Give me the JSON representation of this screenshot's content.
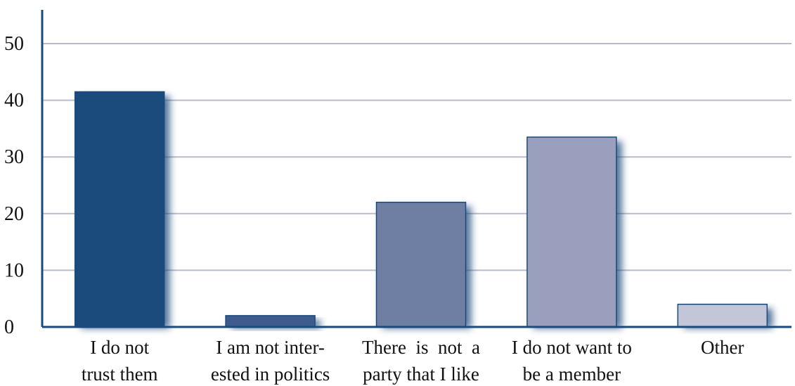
{
  "chart_data": {
    "type": "bar",
    "categories": [
      [
        "I do not",
        "trust them"
      ],
      [
        "I am not inter-",
        "ested in politics"
      ],
      [
        "There  is  not  a",
        "party that I like"
      ],
      [
        "I do not want to",
        "be a member"
      ],
      [
        "Other"
      ]
    ],
    "values": [
      41.5,
      2,
      22,
      33.5,
      4
    ],
    "bar_colors": [
      "#1b4a7c",
      "#3f5a8d",
      "#6f7ea3",
      "#9a9fbd",
      "#c3c6d8"
    ],
    "yticks": [
      0,
      10,
      20,
      30,
      40,
      50
    ],
    "ylim": [
      0,
      50
    ],
    "grid": true,
    "title": "",
    "xlabel": "",
    "ylabel": ""
  }
}
